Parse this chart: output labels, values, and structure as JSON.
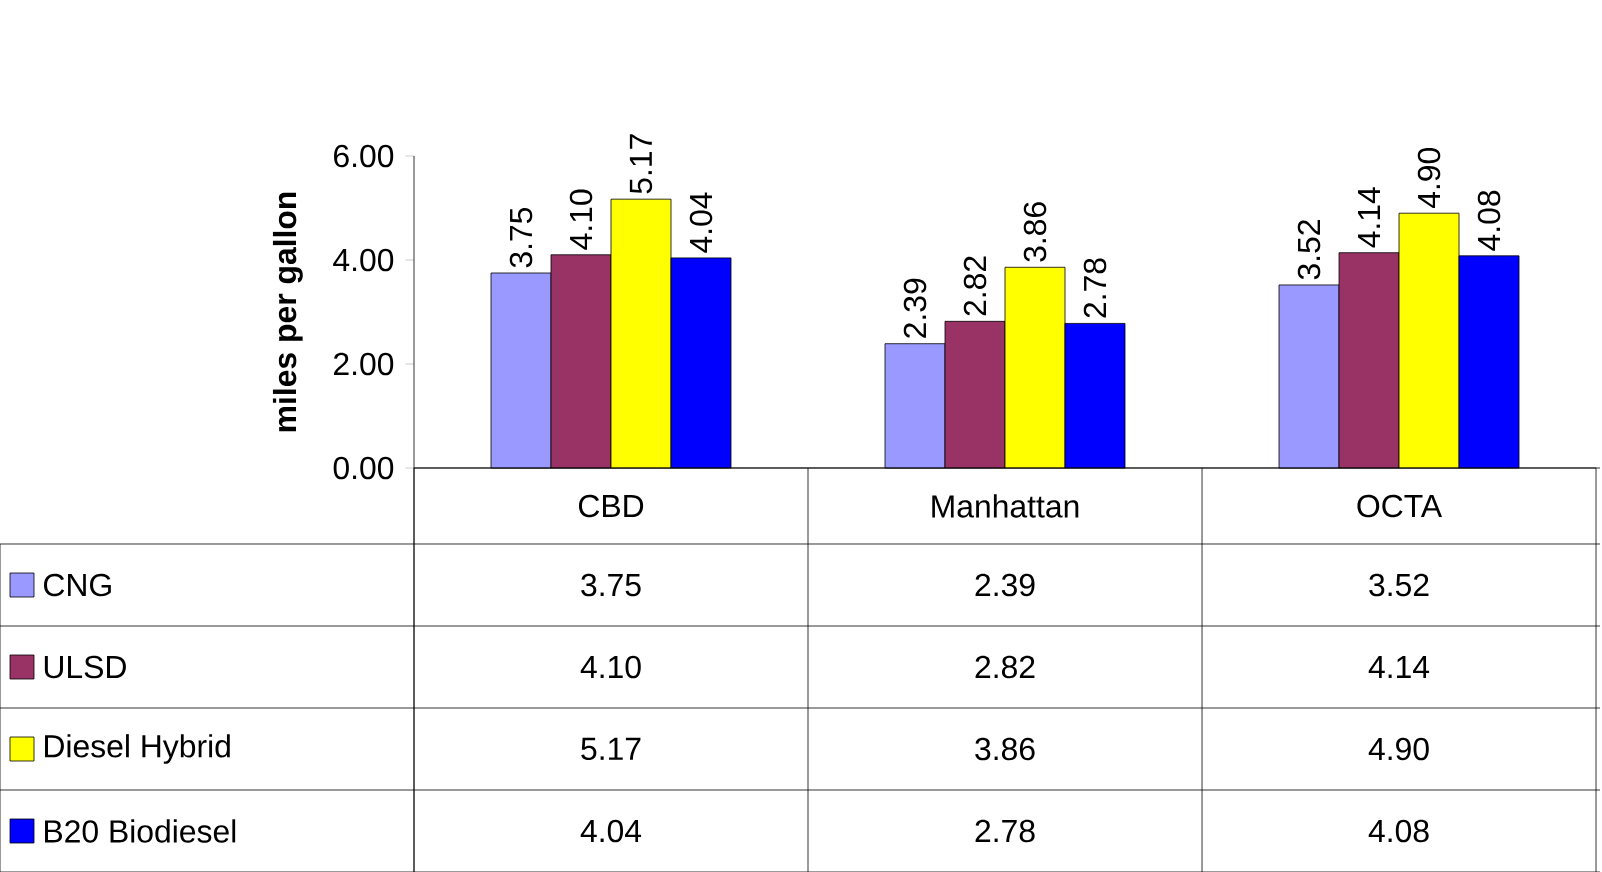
{
  "chart_data": {
    "type": "bar",
    "ylabel": "miles per gallon",
    "categories": [
      "CBD",
      "Manhattan",
      "OCTA"
    ],
    "series": [
      {
        "name": "CNG",
        "color": "#9999ff",
        "values": [
          3.75,
          2.39,
          3.52
        ],
        "value_labels": [
          "3.75",
          "2.39",
          "3.52"
        ]
      },
      {
        "name": "ULSD",
        "color": "#993366",
        "values": [
          4.1,
          2.82,
          4.14
        ],
        "value_labels": [
          "4.10",
          "2.82",
          "4.14"
        ]
      },
      {
        "name": "Diesel Hybrid",
        "color": "#ffff00",
        "values": [
          5.17,
          3.86,
          4.9
        ],
        "value_labels": [
          "5.17",
          "3.86",
          "4.90"
        ]
      },
      {
        "name": "B20 Biodiesel",
        "color": "#0000ff",
        "values": [
          4.04,
          2.78,
          4.08
        ],
        "value_labels": [
          "4.04",
          "2.78",
          "4.08"
        ]
      }
    ],
    "ylim": [
      0,
      6
    ],
    "yticks": [
      {
        "value": 0,
        "label": "0.00"
      },
      {
        "value": 2,
        "label": "2.00"
      },
      {
        "value": 4,
        "label": "4.00"
      },
      {
        "value": 6,
        "label": "6.00"
      }
    ],
    "grid": false,
    "legend": "bottom"
  }
}
